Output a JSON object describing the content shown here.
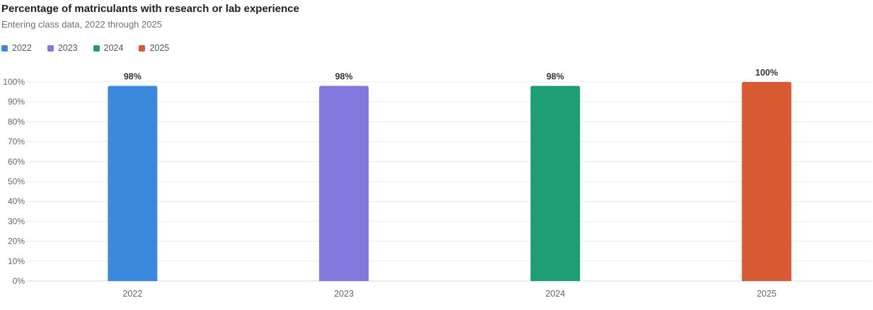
{
  "chart_data": {
    "type": "bar",
    "title": "Percentage of matriculants with research or lab experience",
    "subtitle": "Entering class data, 2022 through 2025",
    "categories": [
      "2022",
      "2023",
      "2024",
      "2025"
    ],
    "values": [
      98,
      98,
      98,
      100
    ],
    "data_labels": [
      "98%",
      "98%",
      "98%",
      "100%"
    ],
    "colors": [
      "#3a89dd",
      "#8177dd",
      "#1e9e76",
      "#d85a32"
    ],
    "legend": [
      "2022",
      "2023",
      "2024",
      "2025"
    ],
    "legend_position": "top-left",
    "ylim": [
      0,
      100
    ],
    "yticks": [
      0,
      10,
      20,
      30,
      40,
      50,
      60,
      70,
      80,
      90,
      100
    ],
    "ytick_labels": [
      "0%",
      "10%",
      "20%",
      "30%",
      "40%",
      "50%",
      "60%",
      "70%",
      "80%",
      "90%",
      "100%"
    ],
    "grid": true
  }
}
